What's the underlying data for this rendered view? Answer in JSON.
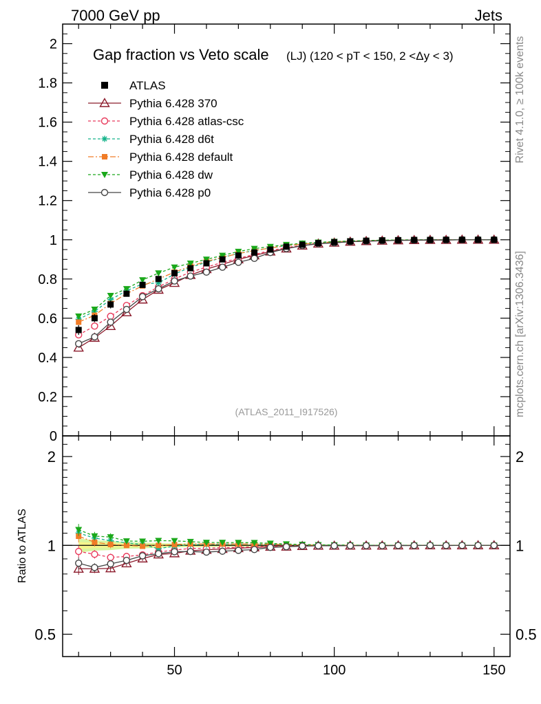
{
  "header": {
    "energy_label": "7000 GeV pp",
    "process_label": "Jets",
    "side_label_top": "Rivet 4.1.0, ≥ 100k events",
    "side_label_bottom": "mcplots.cern.ch [arXiv:1306.3436]",
    "analysis_id": "(ATLAS_2011_I917526)"
  },
  "chart_data": {
    "type": "line",
    "title": "Gap fraction vs Veto scale",
    "title_suffix": "(LJ) (120 < pT < 150, 2 <Δy < 3)",
    "xlabel": "",
    "ylabel": "",
    "ratio_ylabel": "Ratio to ATLAS",
    "xlim": [
      15,
      155
    ],
    "ylim": [
      0,
      2.1
    ],
    "ratio_ylim": [
      0.42,
      2.35
    ],
    "x_ticks": [
      50,
      100,
      150
    ],
    "y_ticks": [
      0,
      0.2,
      0.4,
      0.6,
      0.8,
      1,
      1.2,
      1.4,
      1.6,
      1.8,
      2
    ],
    "y_tick_labels": [
      "0",
      "0.2",
      "0.4",
      "0.6",
      "0.8",
      "1",
      "1.2",
      "1.4",
      "1.6",
      "1.8",
      "2"
    ],
    "ratio_ticks": [
      0.5,
      1,
      2
    ],
    "ratio_tick_labels": [
      "0.5",
      "1",
      "2"
    ],
    "x": [
      20,
      25,
      30,
      35,
      40,
      45,
      50,
      55,
      60,
      65,
      70,
      75,
      80,
      85,
      90,
      95,
      100,
      105,
      110,
      115,
      120,
      125,
      130,
      135,
      140,
      145,
      150
    ],
    "data_series": {
      "name": "ATLAS",
      "values": [
        0.54,
        0.6,
        0.67,
        0.725,
        0.77,
        0.8,
        0.83,
        0.855,
        0.88,
        0.9,
        0.92,
        0.935,
        0.95,
        0.965,
        0.975,
        0.983,
        0.988,
        0.992,
        0.995,
        0.997,
        0.998,
        0.999,
        0.999,
        1.0,
        1.0,
        1.0,
        1.0
      ],
      "errors": [
        0.025,
        0.02,
        0.02,
        0.015,
        0.015,
        0.012,
        0.01,
        0.01,
        0.01,
        0.008,
        0.008,
        0.007,
        0.006,
        0.005,
        0.005,
        0.004,
        0.004,
        0.003,
        0.003,
        0.003,
        0.002,
        0.002,
        0.002,
        0.002,
        0.002,
        0.002,
        0.002
      ]
    },
    "series": [
      {
        "name": "Pythia 6.428 370",
        "color": "#8b1a2b",
        "dash": "",
        "marker": "triangle-open",
        "values": [
          0.45,
          0.5,
          0.56,
          0.63,
          0.695,
          0.745,
          0.78,
          0.82,
          0.85,
          0.875,
          0.9,
          0.92,
          0.94,
          0.955,
          0.97,
          0.98,
          0.985,
          0.99,
          0.993,
          0.995,
          0.997,
          0.998,
          0.999,
          0.999,
          1.0,
          1.0,
          1.0
        ]
      },
      {
        "name": "Pythia 6.428 atlas-csc",
        "color": "#e8385a",
        "dash": "4,3",
        "marker": "circle-open",
        "values": [
          0.515,
          0.56,
          0.61,
          0.665,
          0.715,
          0.76,
          0.8,
          0.835,
          0.86,
          0.885,
          0.905,
          0.925,
          0.945,
          0.96,
          0.972,
          0.98,
          0.987,
          0.991,
          0.994,
          0.996,
          0.998,
          0.999,
          0.999,
          1.0,
          1.0,
          1.0,
          1.0
        ]
      },
      {
        "name": "Pythia 6.428 d6t",
        "color": "#14b38a",
        "dash": "4,3",
        "marker": "star",
        "values": [
          0.595,
          0.635,
          0.695,
          0.74,
          0.775,
          0.78,
          0.825,
          0.86,
          0.885,
          0.91,
          0.93,
          0.945,
          0.958,
          0.97,
          0.978,
          0.985,
          0.989,
          0.993,
          0.995,
          0.997,
          0.998,
          0.999,
          1.0,
          1.0,
          1.0,
          1.0,
          1.0
        ]
      },
      {
        "name": "Pythia 6.428 default",
        "color": "#f07c27",
        "dash": "8,3,2,3",
        "marker": "square",
        "values": [
          0.58,
          0.615,
          0.675,
          0.725,
          0.765,
          0.8,
          0.835,
          0.865,
          0.89,
          0.91,
          0.93,
          0.945,
          0.958,
          0.97,
          0.978,
          0.985,
          0.989,
          0.993,
          0.995,
          0.997,
          0.998,
          0.999,
          1.0,
          1.0,
          1.0,
          1.0,
          1.0
        ]
      },
      {
        "name": "Pythia 6.428 dw",
        "color": "#1aa81a",
        "dash": "4,3",
        "marker": "triangle-down",
        "values": [
          0.61,
          0.645,
          0.715,
          0.75,
          0.795,
          0.83,
          0.86,
          0.88,
          0.9,
          0.92,
          0.94,
          0.955,
          0.965,
          0.975,
          0.982,
          0.987,
          0.991,
          0.994,
          0.996,
          0.998,
          0.999,
          1.0,
          1.0,
          1.0,
          1.0,
          1.0,
          1.0
        ]
      },
      {
        "name": "Pythia 6.428 p0",
        "color": "#444444",
        "dash": "",
        "marker": "circle-open",
        "values": [
          0.47,
          0.505,
          0.58,
          0.645,
          0.71,
          0.75,
          0.79,
          0.815,
          0.835,
          0.86,
          0.885,
          0.905,
          0.935,
          0.955,
          0.97,
          0.98,
          0.985,
          0.99,
          0.993,
          0.995,
          0.997,
          0.998,
          0.999,
          0.999,
          1.0,
          1.0,
          1.0
        ]
      }
    ]
  }
}
